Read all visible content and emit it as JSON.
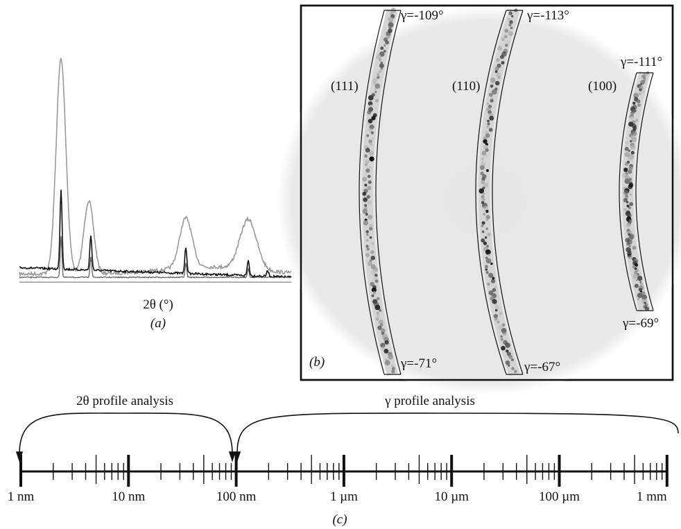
{
  "panel_a": {
    "x_label": "2θ (°)",
    "tag": "(a)"
  },
  "panel_b": {
    "tag": "(b)",
    "rings": [
      {
        "label": "(111)",
        "gamma_top": "γ=-109°",
        "gamma_bottom": "γ=-71°"
      },
      {
        "label": "(110)",
        "gamma_top": "γ=-113°",
        "gamma_bottom": "γ=-67°"
      },
      {
        "label": "(100)",
        "gamma_top": "γ=-111°",
        "gamma_bottom": "γ=-69°"
      }
    ]
  },
  "panel_c": {
    "ranges": [
      "2θ profile analysis",
      "γ profile analysis"
    ],
    "scale_labels": [
      "1 nm",
      "10 nm",
      "100 nm",
      "1 µm",
      "10 µm",
      "100 µm",
      "1 mm"
    ],
    "tag": "(c)"
  }
}
